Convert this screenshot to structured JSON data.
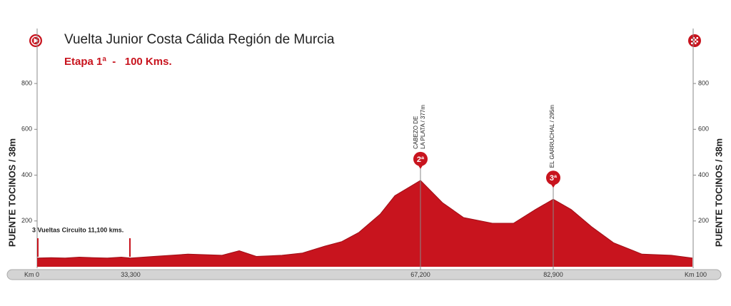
{
  "chart_data": {
    "type": "area",
    "title": "Vuelta Junior Costa Cálida Región de Murcia",
    "subtitle": "Etapa 1ª  -   100 Kms.",
    "side_label": "PUENTE TOCINOS / 38m",
    "annotation": "3 Vueltas Circuito 11,100 kms.",
    "color": "#c8141e",
    "x": [
      0,
      5,
      10,
      15,
      20,
      25,
      30,
      33.3,
      36,
      40,
      44,
      46,
      48,
      51,
      53.4,
      56,
      58,
      60,
      62.5,
      64.2,
      66,
      67.2,
      69.8,
      72.3,
      75.7,
      78.2,
      80.8,
      82.9,
      85.1,
      87.6,
      90.3,
      93.8,
      97.4,
      100
    ],
    "values": [
      38,
      40,
      38,
      42,
      40,
      38,
      42,
      38,
      45,
      55,
      50,
      70,
      45,
      50,
      60,
      90,
      110,
      150,
      230,
      310,
      350,
      377,
      280,
      215,
      190,
      190,
      250,
      295,
      250,
      175,
      105,
      55,
      50,
      38
    ],
    "xlim": [
      0,
      100
    ],
    "xticks": [
      {
        "value": 0,
        "label": "Km 0"
      },
      {
        "value": 33.3,
        "label": "33,300"
      },
      {
        "value": 67.2,
        "label": "67,200"
      },
      {
        "value": 82.9,
        "label": "82,900"
      },
      {
        "value": 100,
        "label": "Km 100"
      }
    ],
    "ylim": [
      0,
      1040
    ],
    "yticks": [
      200,
      400,
      600,
      800
    ],
    "climbs": [
      {
        "x": 67.2,
        "y": 377,
        "category": "2ª",
        "label_lines": [
          "CABEZO DE",
          "LA PLATA / 377m"
        ]
      },
      {
        "x": 82.9,
        "y": 295,
        "category": "3ª",
        "label_lines": [
          "EL GARRUCHAL / 295m"
        ]
      }
    ]
  }
}
